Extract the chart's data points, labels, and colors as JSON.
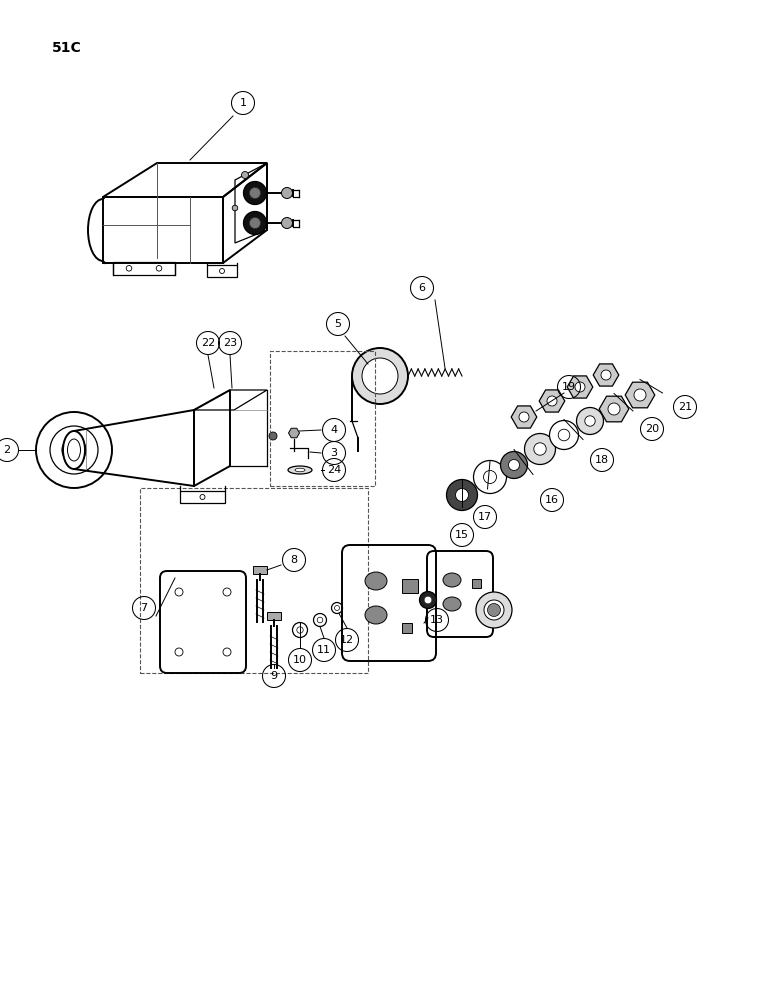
{
  "title": "51C",
  "bg_color": "#ffffff",
  "fig_width": 7.72,
  "fig_height": 10.0,
  "labels": {
    "1": "1",
    "2": "2",
    "3": "3",
    "4": "4",
    "5": "5",
    "6": "6",
    "7": "7",
    "8": "8",
    "9": "9",
    "10": "10",
    "11": "11",
    "12": "12",
    "13": "13",
    "15": "15",
    "16": "16",
    "17": "17",
    "18": "18",
    "19": "19",
    "20": "20",
    "21": "21",
    "22": "22",
    "23": "23",
    "24": "24"
  },
  "lc": "#000000"
}
